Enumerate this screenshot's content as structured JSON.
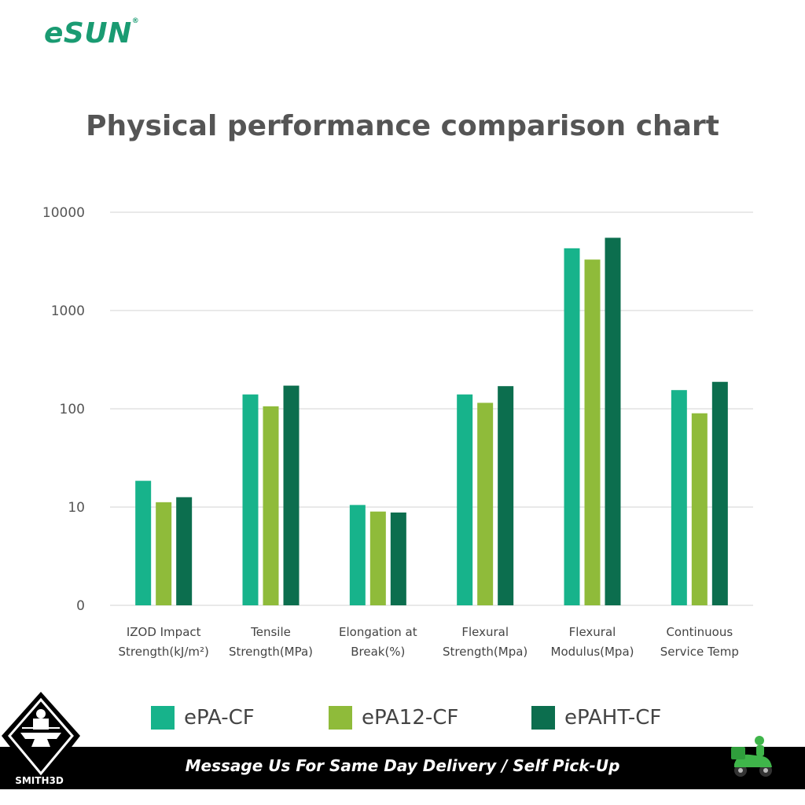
{
  "brand": {
    "logo_e": "e",
    "logo_rest": "SUN",
    "registered": "®",
    "color": "#1a9b72"
  },
  "chart_data": {
    "type": "bar",
    "title": "Physical performance comparison chart",
    "scale": "log",
    "ylim": [
      1,
      10000
    ],
    "yticks": [
      {
        "value": 1,
        "label": "0"
      },
      {
        "value": 10,
        "label": "10"
      },
      {
        "value": 100,
        "label": "100"
      },
      {
        "value": 1000,
        "label": "1000"
      },
      {
        "value": 10000,
        "label": "10000"
      }
    ],
    "grid": true,
    "legend_position": "bottom",
    "categories": [
      [
        "IZOD Impact",
        "Strength(kJ/m²)"
      ],
      [
        "Tensile",
        "Strength(MPa)"
      ],
      [
        "Elongation at",
        "Break(%)"
      ],
      [
        "Flexural",
        "Strength(Mpa)"
      ],
      [
        "Flexural",
        "Modulus(Mpa)"
      ],
      [
        "Continuous",
        "Service Temp"
      ]
    ],
    "series": [
      {
        "name": "ePA-CF",
        "color": "#17b38b",
        "values": [
          18.5,
          140,
          10.5,
          140,
          4300,
          155
        ]
      },
      {
        "name": "ePA12-CF",
        "color": "#8fbb3a",
        "values": [
          11.2,
          106,
          9.0,
          115,
          3300,
          90
        ]
      },
      {
        "name": "ePAHT-CF",
        "color": "#0c6e4e",
        "values": [
          12.6,
          172,
          8.8,
          170,
          5500,
          188
        ]
      }
    ]
  },
  "banner": {
    "text": "Message Us For Same Day Delivery / Self Pick-Up"
  },
  "badge": {
    "text": "SMITH3D"
  }
}
